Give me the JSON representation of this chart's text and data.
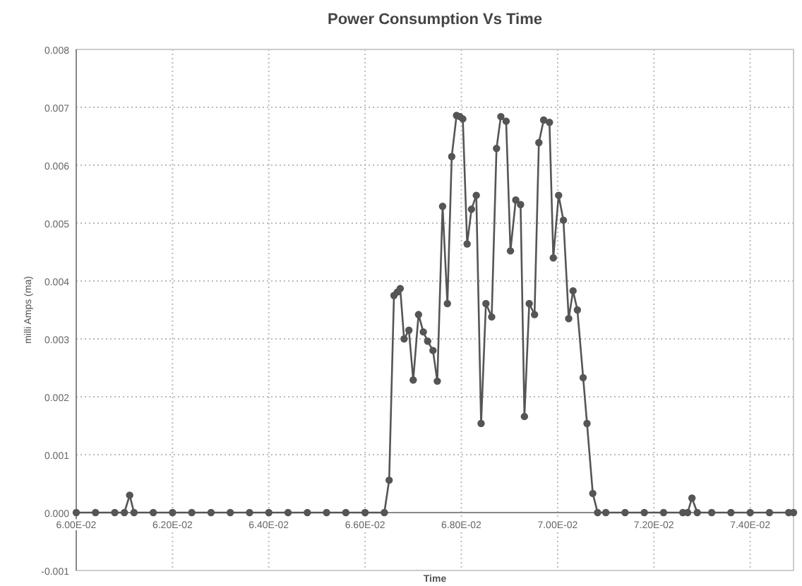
{
  "chart_data": {
    "type": "line",
    "title": "Power Consumption Vs Time",
    "xlabel": "Time",
    "ylabel": "milli Amps (ma)",
    "x": [
      0.06,
      0.0604,
      0.0608,
      0.061,
      0.06111,
      0.0612,
      0.0616,
      0.062,
      0.0624,
      0.0628,
      0.0632,
      0.0636,
      0.064,
      0.0644,
      0.0648,
      0.0652,
      0.0656,
      0.066,
      0.0664,
      0.0665,
      0.0666,
      0.06667,
      0.06673,
      0.06681,
      0.06691,
      0.067,
      0.06711,
      0.06721,
      0.0673,
      0.06741,
      0.0675,
      0.06761,
      0.06771,
      0.0678,
      0.0679,
      0.06797,
      0.06803,
      0.06812,
      0.06821,
      0.06831,
      0.06841,
      0.06851,
      0.06863,
      0.06873,
      0.06882,
      0.06893,
      0.06902,
      0.06913,
      0.06923,
      0.06931,
      0.06941,
      0.06952,
      0.06961,
      0.06971,
      0.06983,
      0.06991,
      0.07002,
      0.07012,
      0.07023,
      0.07032,
      0.07041,
      0.07053,
      0.07061,
      0.07073,
      0.07083,
      0.071,
      0.0714,
      0.0718,
      0.0722,
      0.0726,
      0.0727,
      0.07279,
      0.0729,
      0.0732,
      0.0736,
      0.074,
      0.0744,
      0.0748,
      0.0749
    ],
    "series": [
      {
        "color": "#555555",
        "values": [
          0,
          0,
          0,
          0,
          0.0003,
          0,
          0,
          0,
          0,
          0,
          0,
          0,
          0,
          0,
          0,
          0,
          0,
          0,
          0,
          0.00056,
          0.00375,
          0.00381,
          0.00387,
          0.003,
          0.00315,
          0.00229,
          0.00342,
          0.00312,
          0.00296,
          0.0028,
          0.00227,
          0.00529,
          0.00361,
          0.00615,
          0.00686,
          0.00684,
          0.0068,
          0.00464,
          0.00524,
          0.00548,
          0.00154,
          0.00361,
          0.00338,
          0.00629,
          0.00684,
          0.00676,
          0.00452,
          0.0054,
          0.00532,
          0.00166,
          0.00361,
          0.00342,
          0.00639,
          0.00678,
          0.00674,
          0.0044,
          0.00548,
          0.00505,
          0.00335,
          0.00383,
          0.0035,
          0.00233,
          0.00154,
          0.00033,
          0,
          0,
          0,
          0,
          0,
          0,
          0,
          0.00025,
          0,
          0,
          0,
          0,
          0,
          0,
          0
        ]
      }
    ],
    "xlim": [
      0.06,
      0.0749
    ],
    "xticks": [
      {
        "value": 0.06,
        "label": "6.00E-02"
      },
      {
        "value": 0.062,
        "label": "6.20E-02"
      },
      {
        "value": 0.064,
        "label": "6.40E-02"
      },
      {
        "value": 0.066,
        "label": "6.60E-02"
      },
      {
        "value": 0.068,
        "label": "6.80E-02"
      },
      {
        "value": 0.07,
        "label": "7.00E-02"
      },
      {
        "value": 0.072,
        "label": "7.20E-02"
      },
      {
        "value": 0.074,
        "label": "7.40E-02"
      }
    ],
    "ylim": [
      -0.001,
      0.008
    ],
    "yticks": [
      {
        "value": -0.001,
        "label": "-0.001"
      },
      {
        "value": 0,
        "label": "0.000"
      },
      {
        "value": 0.001,
        "label": "0.001"
      },
      {
        "value": 0.002,
        "label": "0.002"
      },
      {
        "value": 0.003,
        "label": "0.003"
      },
      {
        "value": 0.004,
        "label": "0.004"
      },
      {
        "value": 0.005,
        "label": "0.005"
      },
      {
        "value": 0.006,
        "label": "0.006"
      },
      {
        "value": 0.007,
        "label": "0.007"
      },
      {
        "value": 0.008,
        "label": "0.008"
      }
    ],
    "grid": true,
    "marker": "circle",
    "line_style": "solid"
  }
}
